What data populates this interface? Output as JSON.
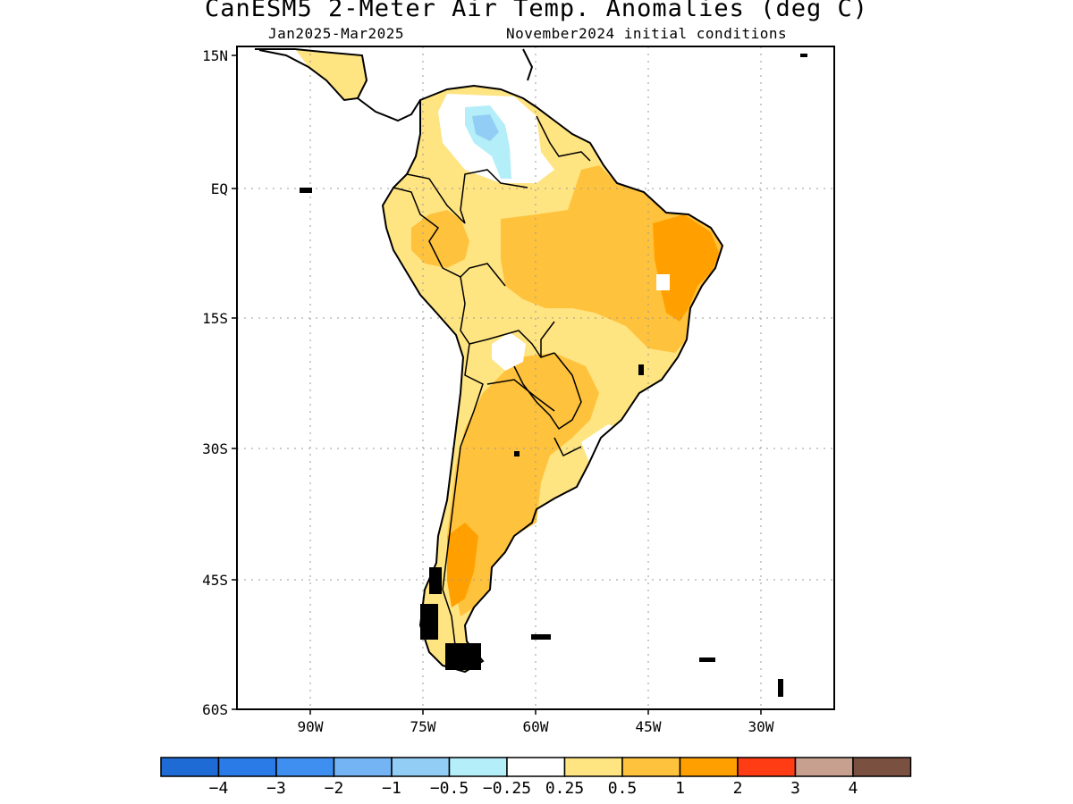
{
  "header": {
    "title": "CanESM5 2-Meter Air Temp. Anomalies (deg C)",
    "period": "Jan2025-Mar2025",
    "init": "November2024 initial conditions"
  },
  "map": {
    "lat_labels": [
      "15N",
      "EQ",
      "15S",
      "30S",
      "45S",
      "60S"
    ],
    "lon_labels": [
      "90W",
      "75W",
      "60W",
      "45W",
      "30W"
    ]
  },
  "colorbar": {
    "labels": [
      "−4",
      "−3",
      "−2",
      "−1",
      "−0.5",
      "−0.25",
      "0.25",
      "0.5",
      "1",
      "2",
      "3",
      "4"
    ],
    "colors": [
      "#1e6bd6",
      "#2a7be8",
      "#3f8ff0",
      "#74b4f4",
      "#92cdf6",
      "#b4eef8",
      "#ffffff",
      "#ffe482",
      "#ffc23c",
      "#ffa000",
      "#ff3c14",
      "#c8a090",
      "#7a5040"
    ]
  }
}
